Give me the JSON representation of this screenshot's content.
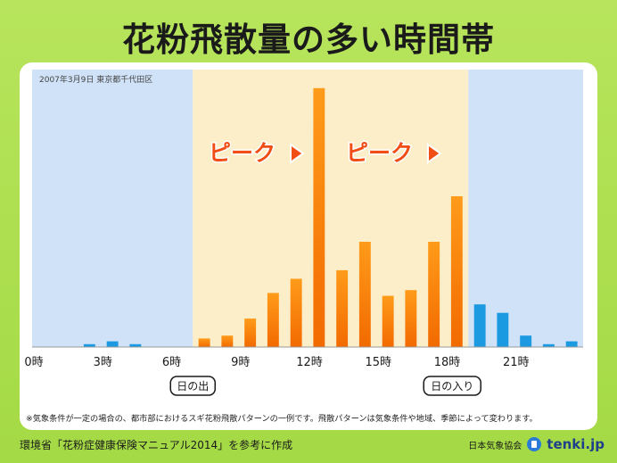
{
  "header": {
    "title": "花粉飛散量の多い時間帯"
  },
  "chart_data": {
    "type": "bar",
    "date_location": "2007年3月9日 東京都千代田区",
    "hours": [
      0,
      1,
      2,
      3,
      4,
      5,
      6,
      7,
      8,
      9,
      10,
      11,
      12,
      13,
      14,
      15,
      16,
      17,
      18,
      19,
      20,
      21,
      22,
      23
    ],
    "values": [
      0,
      0,
      1,
      2,
      1,
      0,
      0,
      3,
      4,
      10,
      19,
      24,
      91,
      27,
      37,
      18,
      20,
      37,
      53,
      15,
      12,
      4,
      1,
      2
    ],
    "ylim": [
      0,
      95
    ],
    "x_tick_labels": [
      "0時",
      "3時",
      "6時",
      "9時",
      "12時",
      "15時",
      "18時",
      "21時"
    ],
    "daylight_range": [
      7,
      19
    ],
    "colors": {
      "night_bg": "#cfe2f7",
      "day_bg": "#fbeec8",
      "night_bar": "#1b9ae2",
      "day_bar_top": "#ff9b1a",
      "day_bar_bottom": "#f26a00",
      "peak_text": "#f04e14"
    },
    "annotations": {
      "peak_label": "ピーク",
      "sunrise": "日の出",
      "sunset": "日の入り"
    },
    "footnote": "※気象条件が一定の場合の、都市部におけるスギ花粉飛散パターンの一例です。飛散パターンは気象条件や地域、季節によって変わります。"
  },
  "footer": {
    "source": "環境省「花粉症健康保険マニュアル2014」を参考に作成",
    "credit": "日本気象協会",
    "brand": "tenki.jp",
    "brand_icon": "tenki-logo-icon"
  }
}
